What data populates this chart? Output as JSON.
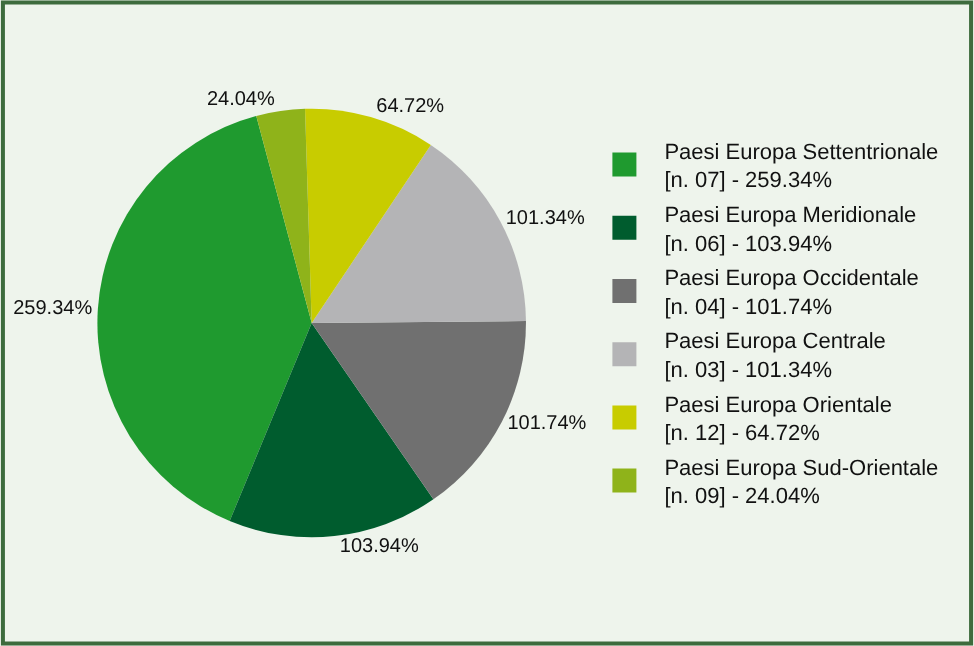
{
  "chart_data": {
    "type": "pie",
    "categories": [
      "Paesi Europa Settentrionale\n[n. 07] - 259.34%",
      "Paesi Europa Meridionale\n[n. 06] - 103.94%",
      "Paesi Europa Occidentale\n[n. 04] - 101.74%",
      "Paesi Europa Centrale\n[n. 03] - 101.34%",
      "Paesi Europa Orientale\n[n. 12] - 64.72%",
      "Paesi Europa Sud-Orientale\n[n. 09] - 24.04%"
    ],
    "values": [
      259.34,
      103.94,
      101.74,
      101.34,
      64.72,
      24.04
    ],
    "value_labels": [
      "259.34%",
      "103.94%",
      "101.74%",
      "101.34%",
      "64.72%",
      "24.04%"
    ],
    "colors": [
      "#1f9a2f",
      "#005c2e",
      "#707070",
      "#b4b4b6",
      "#c8cc00",
      "#8fb31a"
    ],
    "legend": "right"
  }
}
